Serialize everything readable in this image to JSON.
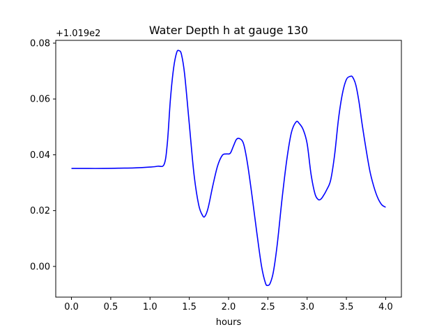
{
  "chart_data": {
    "type": "line",
    "title": "Water Depth h at gauge 130",
    "xlabel": "hours",
    "ylabel": "",
    "y_offset_label": "+1.019e2",
    "xlim": [
      -0.2,
      4.2
    ],
    "ylim": [
      -0.011,
      0.081
    ],
    "x_ticks": [
      0.0,
      0.5,
      1.0,
      1.5,
      2.0,
      2.5,
      3.0,
      3.5,
      4.0
    ],
    "x_tick_labels": [
      "0.0",
      "0.5",
      "1.0",
      "1.5",
      "2.0",
      "2.5",
      "3.0",
      "3.5",
      "4.0"
    ],
    "y_ticks": [
      0.0,
      0.02,
      0.04,
      0.06,
      0.08
    ],
    "y_tick_labels": [
      "0.00",
      "0.02",
      "0.04",
      "0.06",
      "0.08"
    ],
    "grid": false,
    "line_color": "#0000ff",
    "series": [
      {
        "x": [
          0.0,
          0.2,
          0.4,
          0.6,
          0.8,
          1.0,
          1.1,
          1.18,
          1.22,
          1.26,
          1.3,
          1.34,
          1.37,
          1.4,
          1.44,
          1.5,
          1.56,
          1.62,
          1.67,
          1.7,
          1.74,
          1.8,
          1.86,
          1.92,
          1.97,
          2.02,
          2.06,
          2.1,
          2.14,
          2.19,
          2.24,
          2.3,
          2.36,
          2.42,
          2.47,
          2.5,
          2.53,
          2.57,
          2.62,
          2.68,
          2.74,
          2.8,
          2.86,
          2.9,
          2.95,
          3.0,
          3.05,
          3.1,
          3.14,
          3.17,
          3.2,
          3.25,
          3.3,
          3.35,
          3.4,
          3.45,
          3.5,
          3.55,
          3.58,
          3.62,
          3.66,
          3.7,
          3.75,
          3.8,
          3.85,
          3.9,
          3.95,
          4.0
        ],
        "y": [
          0.0351,
          0.0351,
          0.0351,
          0.0352,
          0.0353,
          0.0356,
          0.0359,
          0.0366,
          0.044,
          0.06,
          0.071,
          0.0767,
          0.0773,
          0.076,
          0.069,
          0.051,
          0.033,
          0.022,
          0.0182,
          0.018,
          0.021,
          0.029,
          0.036,
          0.0398,
          0.0403,
          0.0405,
          0.043,
          0.0455,
          0.0458,
          0.044,
          0.037,
          0.025,
          0.012,
          0.0,
          -0.006,
          -0.0068,
          -0.006,
          -0.002,
          0.008,
          0.024,
          0.038,
          0.048,
          0.0518,
          0.0512,
          0.049,
          0.044,
          0.033,
          0.026,
          0.024,
          0.024,
          0.025,
          0.0275,
          0.031,
          0.04,
          0.053,
          0.062,
          0.067,
          0.0681,
          0.0678,
          0.065,
          0.059,
          0.051,
          0.042,
          0.034,
          0.0285,
          0.0245,
          0.0221,
          0.0212
        ]
      }
    ]
  }
}
